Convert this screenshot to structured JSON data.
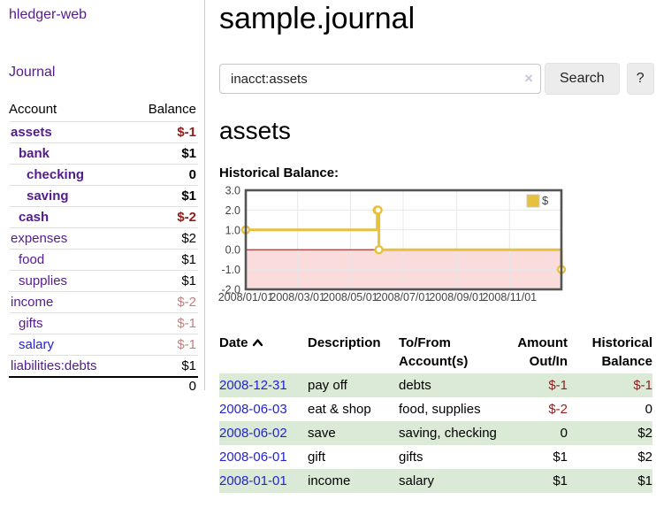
{
  "sidebar": {
    "app_title": "hledger-web",
    "journal_label": "Journal",
    "accounts_header": {
      "account": "Account",
      "balance": "Balance"
    },
    "accounts": [
      {
        "name": "assets",
        "level": 1,
        "bold": true,
        "balance": "$-1",
        "balance_tone": "neg"
      },
      {
        "name": "bank",
        "level": 2,
        "bold": true,
        "balance": "$1",
        "balance_tone": "pos"
      },
      {
        "name": "checking",
        "level": 3,
        "bold": true,
        "balance": "0",
        "balance_tone": "pos"
      },
      {
        "name": "saving",
        "level": 3,
        "bold": true,
        "balance": "$1",
        "balance_tone": "pos"
      },
      {
        "name": "cash",
        "level": 2,
        "bold": true,
        "balance": "$-2",
        "balance_tone": "neg"
      },
      {
        "name": "expenses",
        "level": 1,
        "bold": false,
        "balance": "$2",
        "balance_tone": "pos"
      },
      {
        "name": "food",
        "level": 2,
        "bold": false,
        "balance": "$1",
        "balance_tone": "pos"
      },
      {
        "name": "supplies",
        "level": 2,
        "bold": false,
        "balance": "$1",
        "balance_tone": "pos"
      },
      {
        "name": "income",
        "level": 1,
        "bold": false,
        "balance": "$-2",
        "balance_tone": "neg-light"
      },
      {
        "name": "gifts",
        "level": 2,
        "bold": false,
        "balance": "$-1",
        "balance_tone": "neg-light"
      },
      {
        "name": "salary",
        "level": 2,
        "bold": false,
        "balance": "$-1",
        "balance_tone": "neg-light",
        "link_tone": "blue"
      },
      {
        "name": "liabilities:debts",
        "level": 1,
        "bold": false,
        "balance": "$1",
        "balance_tone": "pos"
      }
    ],
    "total_balance": "0"
  },
  "search": {
    "value": "inacct:assets",
    "clear_icon": "×",
    "button_label": "Search",
    "help_label": "?"
  },
  "main": {
    "title": "sample.journal",
    "account_heading": "assets",
    "chart_title": "Historical Balance:"
  },
  "register": {
    "columns": [
      "Date",
      "Description",
      "To/From Account(s)",
      "Amount Out/In",
      "Historical Balance"
    ],
    "sort_icon": "chevron-up-icon",
    "rows": [
      {
        "date": "2008-12-31",
        "description": "pay off",
        "accounts": "debts",
        "amount": "$-1",
        "balance": "$-1"
      },
      {
        "date": "2008-06-03",
        "description": "eat & shop",
        "accounts": "food, supplies",
        "amount": "$-2",
        "balance": "0"
      },
      {
        "date": "2008-06-02",
        "description": "save",
        "accounts": "saving, checking",
        "amount": "0",
        "balance": "$2"
      },
      {
        "date": "2008-06-01",
        "description": "gift",
        "accounts": "gifts",
        "amount": "$1",
        "balance": "$2"
      },
      {
        "date": "2008-01-01",
        "description": "income",
        "accounts": "salary",
        "amount": "$1",
        "balance": "$1"
      }
    ]
  },
  "chart_data": {
    "type": "line",
    "step": true,
    "title": "Historical Balance:",
    "series": [
      {
        "name": "$",
        "color": "#e6c13d",
        "points": [
          [
            "2008-01-01",
            1
          ],
          [
            "2008-06-01",
            2
          ],
          [
            "2008-06-02",
            2
          ],
          [
            "2008-06-03",
            0
          ],
          [
            "2008-12-31",
            -1
          ]
        ]
      }
    ],
    "x_ticks": [
      "2008/01/01",
      "2008/03/01",
      "2008/05/01",
      "2008/07/01",
      "2008/09/01",
      "2008/11/01"
    ],
    "y_ticks": [
      3.0,
      2.0,
      1.0,
      0.0,
      -1.0,
      -2.0
    ],
    "ylim": [
      -2,
      3
    ],
    "x_start": "2008-01-01",
    "x_end": "2008-12-31",
    "grid": true,
    "negative_region_color": "#fadcdc",
    "zero_line_color": "#a61c1c",
    "border_color": "#545454",
    "grid_color": "#e7e7e7",
    "legend": {
      "label": "$",
      "position": "top-right",
      "swatch_color": "#e6c13d"
    }
  }
}
